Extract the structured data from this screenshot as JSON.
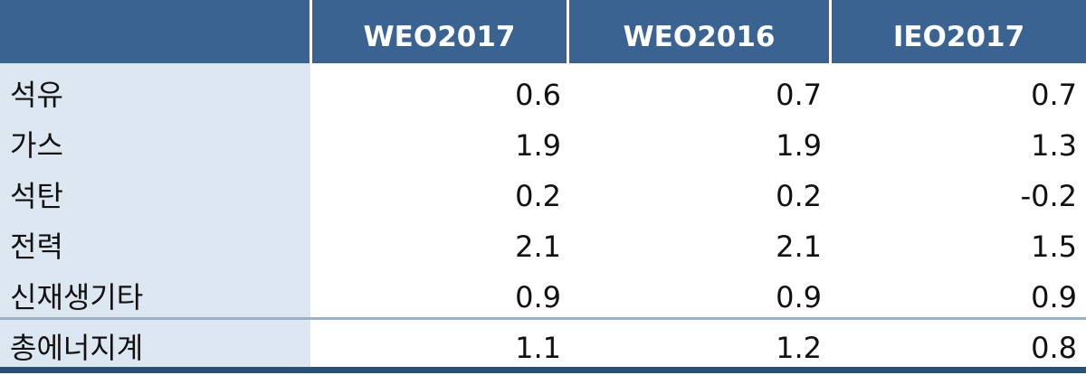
{
  "chart_data": {
    "type": "table",
    "columns": [
      "WEO2017",
      "WEO2016",
      "IEO2017"
    ],
    "rows": [
      {
        "label": "석유",
        "values": [
          "0.6",
          "0.7",
          "0.7"
        ]
      },
      {
        "label": "가스",
        "values": [
          "1.9",
          "1.9",
          "1.3"
        ]
      },
      {
        "label": "석탄",
        "values": [
          "0.2",
          "0.2",
          "-0.2"
        ]
      },
      {
        "label": "전력",
        "values": [
          "2.1",
          "2.1",
          "1.5"
        ]
      },
      {
        "label": "신재생기타",
        "values": [
          "0.9",
          "0.9",
          "0.9"
        ]
      }
    ],
    "total": {
      "label": "총에너지계",
      "values": [
        "1.1",
        "1.2",
        "0.8"
      ]
    }
  },
  "colors": {
    "header_bg": "#3b6391",
    "label_col_bg": "#dde7f2",
    "bottom_rule": "#2c4f78"
  }
}
